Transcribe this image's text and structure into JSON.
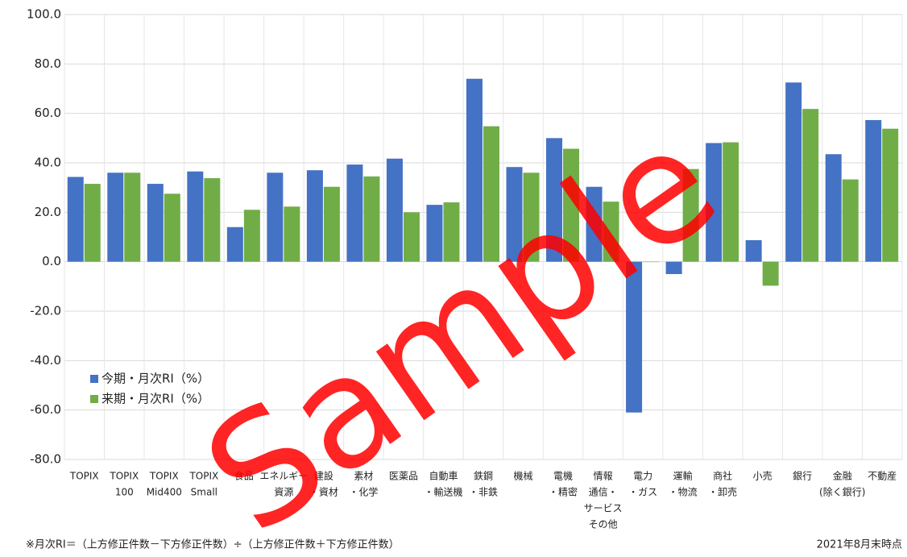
{
  "chart_data": {
    "type": "bar",
    "categories": [
      [
        "TOPIX"
      ],
      [
        "TOPIX",
        "100"
      ],
      [
        "TOPIX",
        "Mid400"
      ],
      [
        "TOPIX",
        "Small"
      ],
      [
        "食品"
      ],
      [
        "エネルギー",
        "資源"
      ],
      [
        "建設",
        "・資材"
      ],
      [
        "素材",
        "・化学"
      ],
      [
        "医薬品"
      ],
      [
        "自動車",
        "・輸送機"
      ],
      [
        "鉄鋼",
        "・非鉄"
      ],
      [
        "機械"
      ],
      [
        "電機",
        "・精密"
      ],
      [
        "情報",
        "通信・",
        "サービス",
        "その他"
      ],
      [
        "電力",
        "・ガス"
      ],
      [
        "運輸",
        "・物流"
      ],
      [
        "商社",
        "・卸売"
      ],
      [
        "小売"
      ],
      [
        "銀行"
      ],
      [
        "金融",
        "(除く銀行)"
      ],
      [
        "不動産"
      ]
    ],
    "series": [
      {
        "name": "今期・月次RI（%）",
        "color": "#4472c4",
        "values": [
          34.3,
          36,
          31.5,
          36.5,
          14,
          36,
          37,
          39.3,
          41.7,
          23,
          74,
          38.3,
          50,
          30.3,
          -61,
          -5,
          48,
          8.7,
          72.5,
          43.5,
          57.3
        ]
      },
      {
        "name": "来期・月次RI（%）",
        "color": "#70ad47",
        "values": [
          31.5,
          36,
          27.5,
          33.8,
          21,
          22.3,
          30.3,
          34.5,
          20,
          24,
          54.8,
          36,
          45.7,
          24.3,
          0,
          37.5,
          48.3,
          -9.7,
          61.8,
          33.3,
          53.8
        ]
      }
    ],
    "ylim": [
      -80,
      100
    ],
    "yticks": [
      {
        "value": -80,
        "label": "-80.0"
      },
      {
        "value": -60,
        "label": "-60.0"
      },
      {
        "value": -40,
        "label": "-40.0"
      },
      {
        "value": -20,
        "label": "-20.0"
      },
      {
        "value": 0,
        "label": "0.0"
      },
      {
        "value": 20,
        "label": "20.0"
      },
      {
        "value": 40,
        "label": "40.0"
      },
      {
        "value": 60,
        "label": "60.0"
      },
      {
        "value": 80,
        "label": "80.0"
      },
      {
        "value": 100,
        "label": "100.0"
      }
    ],
    "grid": true,
    "footnote": "※月次RI＝（上方修正件数－下方修正件数）÷（上方修正件数＋下方修正件数）",
    "date_note": "2021年8月末時点",
    "watermark": "Sample"
  }
}
